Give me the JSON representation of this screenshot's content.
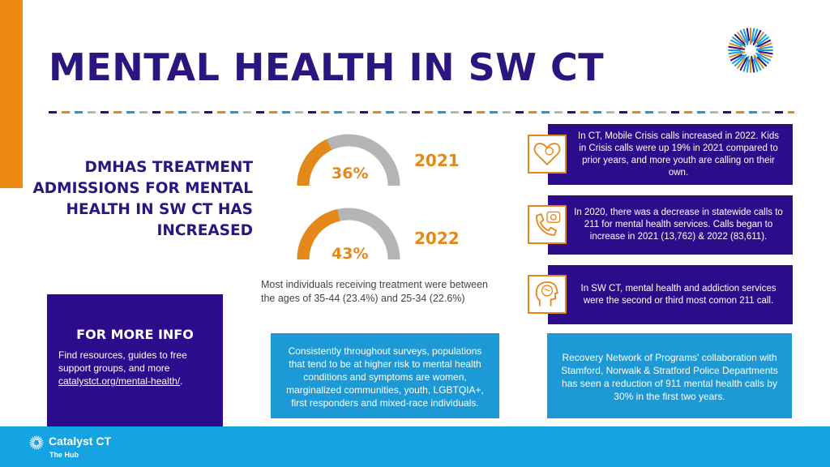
{
  "header": {
    "title": "MENTAL HEALTH IN SW CT"
  },
  "colors": {
    "purple": "#2d0c8b",
    "title_purple": "#2b1680",
    "orange": "#e4881c",
    "blue": "#1d9ad6",
    "gray": "#b5b5b5"
  },
  "headline": {
    "text": "DMHAS TREATMENT ADMISSIONS FOR MENTAL HEALTH IN SW CT HAS INCREASED"
  },
  "gauges": [
    {
      "percent": 36,
      "label": "36%",
      "year": "2021"
    },
    {
      "percent": 43,
      "label": "43%",
      "year": "2022"
    }
  ],
  "treatment_note": "Most individuals receiving treatment were between the ages of 35-44 (23.4%) and 25-34 (22.6%)",
  "facts": [
    {
      "icon": "heart-brain-icon",
      "text": "In CT, Mobile Crisis calls increased in 2022. Kids in Crisis calls were up 19% in 2021 compared to prior years, and more youth are calling on their own."
    },
    {
      "icon": "phone-brain-icon",
      "text": "In 2020, there was a decrease in statewide calls to 211 for mental health services. Calls began to increase in 2021 (13,762) & 2022 (83,611)."
    },
    {
      "icon": "head-brain-icon",
      "text": "In SW CT, mental health and addiction services were the second or third most comon 211 call."
    }
  ],
  "more_info": {
    "title": "FOR MORE INFO",
    "text": "Find resources, guides to free support groups, and more",
    "link": "catalystct.org/mental-health/",
    "after_link": "."
  },
  "populations_text": "Consistently throughout surveys, populations that tend to be at higher risk to mental health conditions and symptoms are women, marginalized communities, youth, LGBTQIA+, first responders and mixed-race individuals.",
  "recovery_text": "Recovery Network of Programs' collaboration with Stamford, Norwalk & Stratford Police Departments has seen a reduction of 911 mental health calls by 30% in the first two years.",
  "footer": {
    "org_name": "Catalyst CT",
    "sub_name": "The Hub"
  }
}
